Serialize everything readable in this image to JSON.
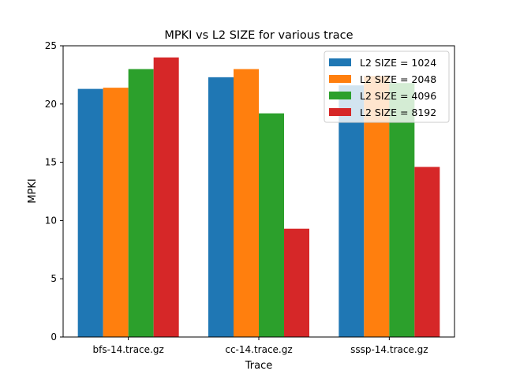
{
  "chart_data": {
    "type": "bar",
    "title": "MPKI vs L2 SIZE for various trace",
    "xlabel": "Trace",
    "ylabel": "MPKI",
    "categories": [
      "bfs-14.trace.gz",
      "cc-14.trace.gz",
      "sssp-14.trace.gz"
    ],
    "series": [
      {
        "name": "L2 SIZE = 1024",
        "color": "#1f77b4",
        "values": [
          21.3,
          22.3,
          21.6
        ]
      },
      {
        "name": "L2 SIZE = 2048",
        "color": "#ff7f0e",
        "values": [
          21.4,
          23.0,
          22.4
        ]
      },
      {
        "name": "L2 SIZE = 4096",
        "color": "#2ca02c",
        "values": [
          23.0,
          19.2,
          21.8
        ]
      },
      {
        "name": "L2 SIZE = 8192",
        "color": "#d62728",
        "values": [
          24.0,
          9.3,
          14.6
        ]
      }
    ],
    "ylim": [
      0,
      25
    ],
    "yticks": [
      0,
      5,
      10,
      15,
      20,
      25
    ],
    "grid": false,
    "legend_position": "top-right"
  }
}
